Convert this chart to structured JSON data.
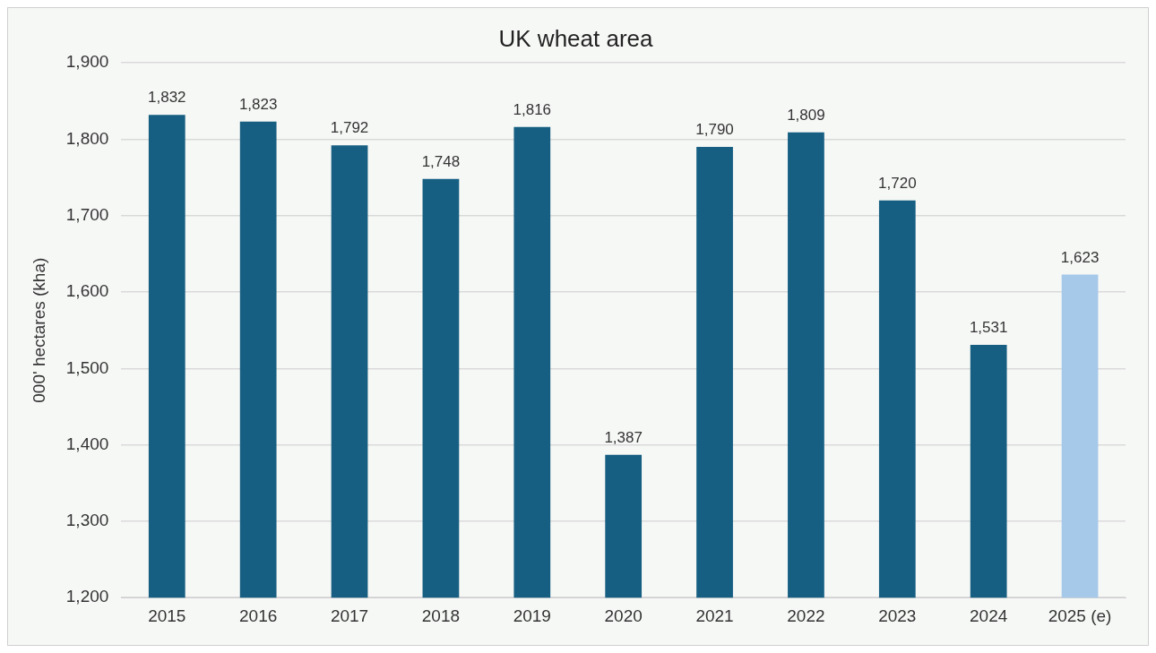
{
  "chart_data": {
    "type": "bar",
    "title": "UK wheat area",
    "ylabel": "000' hectares (kha)",
    "categories": [
      "2015",
      "2016",
      "2017",
      "2018",
      "2019",
      "2020",
      "2021",
      "2022",
      "2023",
      "2024",
      "2025 (e)"
    ],
    "values": [
      1832,
      1823,
      1792,
      1748,
      1816,
      1387,
      1790,
      1809,
      1720,
      1531,
      1623
    ],
    "colors": [
      "#175f82",
      "#175f82",
      "#175f82",
      "#175f82",
      "#175f82",
      "#175f82",
      "#175f82",
      "#175f82",
      "#175f82",
      "#175f82",
      "#a6c9ea"
    ],
    "value_labels": [
      "1,832",
      "1,823",
      "1,792",
      "1,748",
      "1,816",
      "1,387",
      "1,790",
      "1,809",
      "1,720",
      "1,531",
      "1,623"
    ],
    "ylim": [
      1200,
      1900
    ],
    "yticks": [
      {
        "value": 1200,
        "label": "1,200"
      },
      {
        "value": 1300,
        "label": "1,300"
      },
      {
        "value": 1400,
        "label": "1,400"
      },
      {
        "value": 1500,
        "label": "1,500"
      },
      {
        "value": 1600,
        "label": "1,600"
      },
      {
        "value": 1700,
        "label": "1,700"
      },
      {
        "value": 1800,
        "label": "1,800"
      },
      {
        "value": 1900,
        "label": "1,900"
      }
    ],
    "grid": "y",
    "legend": false
  }
}
